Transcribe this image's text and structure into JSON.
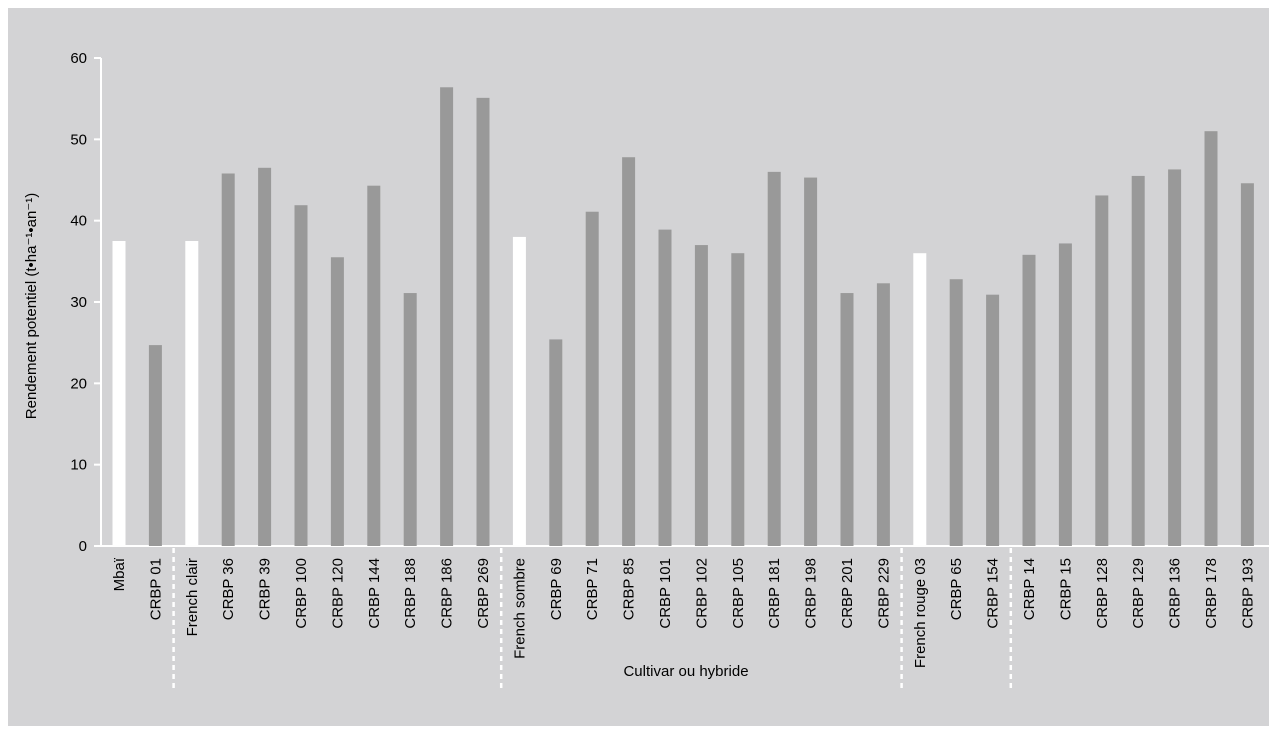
{
  "chart_data": {
    "type": "bar",
    "title": "",
    "xlabel": "Cultivar ou hybride",
    "ylabel": "Rendement potentiel (t•ha⁻¹•an⁻¹)",
    "ylim": [
      0,
      60
    ],
    "yticks": [
      0,
      10,
      20,
      30,
      40,
      50,
      60
    ],
    "grid": false,
    "legend": "none",
    "colors": {
      "cultivar": "#ffffff",
      "hybrid": "#999999",
      "background": "#d3d3d5",
      "axis": "#ffffff"
    },
    "categories": [
      "Mbaï",
      "CRBP 01",
      "French clair",
      "CRBP 36",
      "CRBP 39",
      "CRBP 100",
      "CRBP 120",
      "CRBP 144",
      "CRBP 188",
      "CRBP 186",
      "CRBP 269",
      "French sombre",
      "CRBP 69",
      "CRBP 71",
      "CRBP 85",
      "CRBP 101",
      "CRBP 102",
      "CRBP 105",
      "CRBP 181",
      "CRBP 198",
      "CRBP 201",
      "CRBP 229",
      "French rouge 03",
      "CRBP 65",
      "CRBP 154",
      "CRBP 14",
      "CRBP 15",
      "CRBP 128",
      "CRBP 129",
      "CRBP 136",
      "CRBP 178",
      "CRBP 193"
    ],
    "values": [
      37.5,
      24.7,
      37.5,
      45.8,
      46.5,
      41.9,
      35.5,
      44.3,
      31.1,
      56.4,
      55.1,
      38.0,
      25.4,
      41.1,
      47.8,
      38.9,
      37.0,
      36.0,
      46.0,
      45.3,
      31.1,
      32.3,
      36.0,
      32.8,
      30.9,
      35.8,
      37.2,
      43.1,
      45.5,
      46.3,
      51.0,
      44.6
    ],
    "bar_kind": [
      "cultivar",
      "hybrid",
      "cultivar",
      "hybrid",
      "hybrid",
      "hybrid",
      "hybrid",
      "hybrid",
      "hybrid",
      "hybrid",
      "hybrid",
      "cultivar",
      "hybrid",
      "hybrid",
      "hybrid",
      "hybrid",
      "hybrid",
      "hybrid",
      "hybrid",
      "hybrid",
      "hybrid",
      "hybrid",
      "cultivar",
      "hybrid",
      "hybrid",
      "hybrid",
      "hybrid",
      "hybrid",
      "hybrid",
      "hybrid",
      "hybrid",
      "hybrid"
    ],
    "group_separators_before": [
      2,
      11,
      22,
      25
    ]
  }
}
